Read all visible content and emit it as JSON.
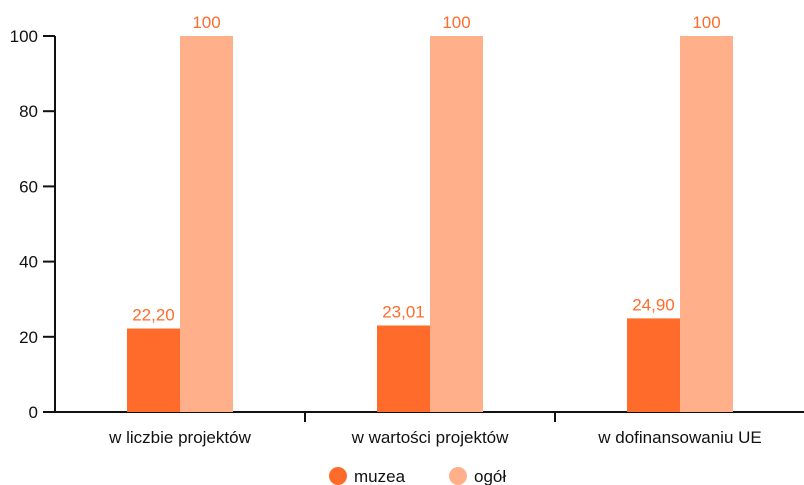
{
  "chart_data": {
    "type": "bar",
    "title": "",
    "xlabel": "",
    "ylabel": "",
    "categories": [
      "w liczbie projektów",
      "w wartości projektów",
      "w dofinansowaniu UE"
    ],
    "series": [
      {
        "name": "muzea",
        "color": "#ff6b2b",
        "values": [
          22.2,
          23.01,
          24.9
        ],
        "labels": [
          "22,20",
          "23,01",
          "24,90"
        ]
      },
      {
        "name": "ogół",
        "color": "#ffb08a",
        "values": [
          100,
          100,
          100
        ],
        "labels": [
          "100",
          "100",
          "100"
        ]
      }
    ],
    "ylim": [
      0,
      100
    ],
    "yticks": [
      0,
      20,
      40,
      60,
      80,
      100
    ],
    "ytick_labels": [
      "0",
      "20",
      "40",
      "60",
      "80",
      "100"
    ],
    "grid": false,
    "legend_position": "bottom-center",
    "data_label_color": "#ff6b2b"
  }
}
